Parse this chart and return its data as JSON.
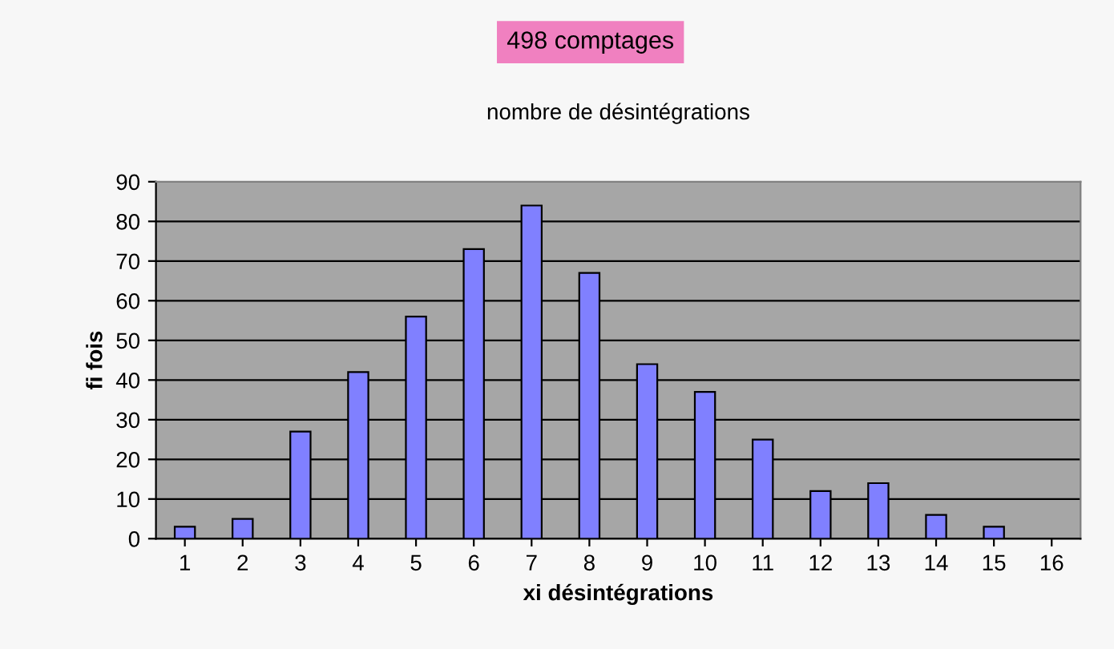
{
  "chart_data": {
    "type": "bar",
    "title": "nombre de désintégrations",
    "xlabel": "xi désintégrations",
    "ylabel": "fi fois",
    "annotations": [
      "498 comptages"
    ],
    "categories": [
      "1",
      "2",
      "3",
      "4",
      "5",
      "6",
      "7",
      "8",
      "9",
      "10",
      "11",
      "12",
      "13",
      "14",
      "15",
      "16"
    ],
    "values": [
      3,
      5,
      27,
      42,
      56,
      73,
      84,
      67,
      44,
      37,
      25,
      12,
      14,
      6,
      3,
      0
    ],
    "color": "#8080ff",
    "ylim": [
      0,
      90
    ],
    "yticks": [
      0,
      10,
      20,
      30,
      40,
      50,
      60,
      70,
      80,
      90
    ],
    "grid": "y"
  }
}
